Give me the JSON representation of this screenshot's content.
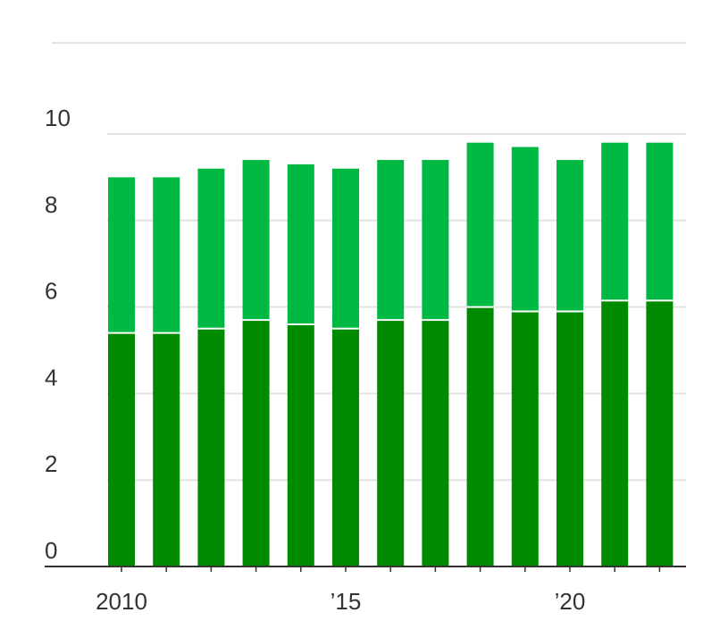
{
  "chart_data": {
    "type": "bar",
    "stacked": true,
    "categories": [
      "2010",
      "2011",
      "2012",
      "2013",
      "2014",
      "2015",
      "2016",
      "2017",
      "2018",
      "2019",
      "2020",
      "2021",
      "2022"
    ],
    "series": [
      {
        "color": "#008a00",
        "values": [
          5.4,
          5.4,
          5.5,
          5.7,
          5.6,
          5.5,
          5.7,
          5.7,
          6.0,
          5.9,
          5.9,
          6.15,
          6.15
        ]
      },
      {
        "color": "#00b944",
        "values": [
          3.6,
          3.6,
          3.7,
          3.7,
          3.7,
          3.7,
          3.7,
          3.7,
          3.8,
          3.8,
          3.5,
          3.65,
          3.65
        ]
      }
    ],
    "ylim": [
      0,
      10
    ],
    "yticks": [
      "0",
      "2",
      "4",
      "6",
      "8",
      "10"
    ],
    "xtick_labels": [
      {
        "category": "2010",
        "label": "2010"
      },
      {
        "category": "2015",
        "label": "’15"
      },
      {
        "category": "2020",
        "label": "’20"
      }
    ],
    "grid": true,
    "legend": "none"
  }
}
